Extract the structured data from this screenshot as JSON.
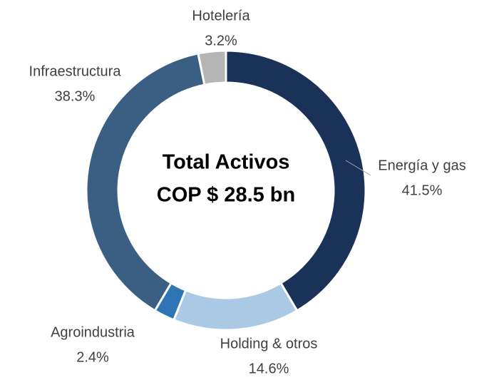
{
  "chart_data": {
    "type": "donut",
    "center_label": [
      "Total Activos",
      "COP $ 28.5 bn"
    ],
    "categories": [
      "Energía y gas",
      "Holding & otros",
      "Agroindustria",
      "Infraestructura",
      "Hotelería"
    ],
    "values": [
      41.5,
      14.6,
      2.4,
      38.3,
      3.2
    ],
    "value_labels": [
      "41.5%",
      "14.6%",
      "2.4%",
      "38.3%",
      "3.2%"
    ],
    "colors": [
      "#1a3258",
      "#a9c9e4",
      "#2e75b6",
      "#3b5e83",
      "#b5b5b5"
    ]
  }
}
